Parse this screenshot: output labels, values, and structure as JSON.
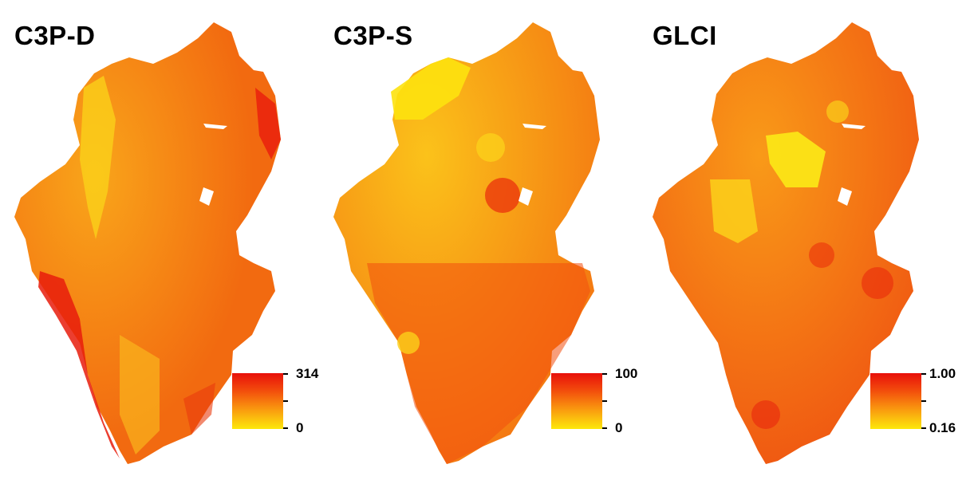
{
  "panels": [
    {
      "title": "C3P-D",
      "legend": {
        "max": "314",
        "min": "0"
      },
      "palette": {
        "base": "#f26a10",
        "low": "#fbd41a",
        "high": "#e81c0c"
      }
    },
    {
      "title": "C3P-S",
      "legend": {
        "max": "100",
        "min": "0"
      },
      "palette": {
        "base": "#f47a12",
        "low": "#fde20e",
        "high": "#ea2a0b"
      }
    },
    {
      "title": "GLCI",
      "legend": {
        "max": "1.00",
        "min": "0.16"
      },
      "palette": {
        "base": "#f05a12",
        "low": "#fbe516",
        "high": "#e8200c"
      }
    }
  ],
  "legend_colors": {
    "top": "#e8100a",
    "bottom": "#fde80c"
  }
}
